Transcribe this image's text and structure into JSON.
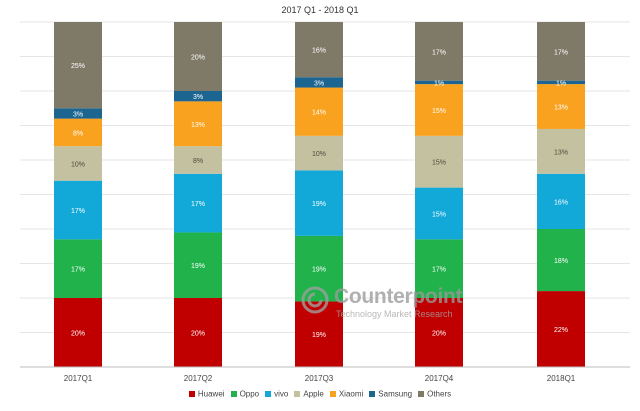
{
  "title": "2017 Q1 - 2018 Q1",
  "watermark": {
    "name": "Counterpoint",
    "tagline": "Technology Market Research"
  },
  "chart_data": {
    "type": "bar",
    "stacked": true,
    "title": "2017 Q1 - 2018 Q1",
    "xlabel": "",
    "ylabel": "",
    "ylim": [
      0,
      100
    ],
    "grid": true,
    "legend_position": "bottom",
    "categories": [
      "2017Q1",
      "2017Q2",
      "2017Q3",
      "2017Q4",
      "2018Q1"
    ],
    "series": [
      {
        "name": "Huawei",
        "color": "#c00000",
        "values": [
          20,
          20,
          19,
          20,
          22
        ],
        "labels": [
          "20%",
          "20%",
          "19%",
          "20%",
          "22%"
        ]
      },
      {
        "name": "Oppo",
        "color": "#22b24c",
        "values": [
          17,
          19,
          19,
          17,
          18
        ],
        "labels": [
          "17%",
          "19%",
          "19%",
          "17%",
          "18%"
        ]
      },
      {
        "name": "vivo",
        "color": "#12a9d8",
        "values": [
          17,
          17,
          19,
          15,
          16
        ],
        "labels": [
          "17%",
          "17%",
          "19%",
          "15%",
          "16%"
        ]
      },
      {
        "name": "Apple",
        "color": "#c4c1a0",
        "values": [
          10,
          8,
          10,
          15,
          13
        ],
        "labels": [
          "10%",
          "8%",
          "10%",
          "15%",
          "13%"
        ]
      },
      {
        "name": "Xiaomi",
        "color": "#f8a21f",
        "values": [
          8,
          13,
          14,
          15,
          13
        ],
        "labels": [
          "8%",
          "13%",
          "14%",
          "15%",
          "13%"
        ]
      },
      {
        "name": "Samsung",
        "color": "#1d6591",
        "values": [
          3,
          3,
          3,
          1,
          1
        ],
        "labels": [
          "3%",
          "3%",
          "3%",
          "1%",
          "1%"
        ]
      },
      {
        "name": "Others",
        "color": "#7f7a68",
        "values": [
          25,
          20,
          16,
          17,
          17
        ],
        "labels": [
          "25%",
          "20%",
          "16%",
          "17%",
          "17%"
        ]
      }
    ]
  }
}
